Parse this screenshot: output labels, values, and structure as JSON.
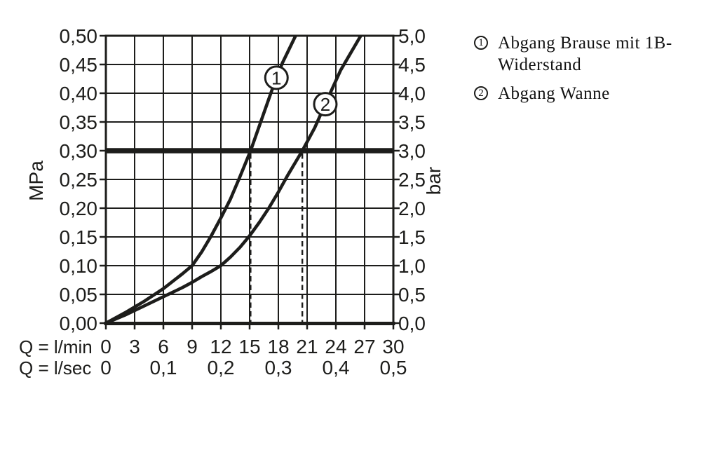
{
  "page": {
    "background": "#ffffff",
    "ink_color": "#1d1d1b"
  },
  "chart_data": {
    "type": "line",
    "title": "",
    "grid": true,
    "x_axis": {
      "label_min": "Q = l/min",
      "label_sec": "Q = l/sec",
      "lmin_tick_labels": [
        "0",
        "3",
        "6",
        "9",
        "12",
        "15",
        "18",
        "21",
        "24",
        "27",
        "30"
      ],
      "lmin_tick_values": [
        0,
        3,
        6,
        9,
        12,
        15,
        18,
        21,
        24,
        27,
        30
      ],
      "lsec_tick_labels": [
        "0",
        "0,1",
        "0,2",
        "0,3",
        "0,4",
        "0,5"
      ],
      "lsec_tick_lmin_positions": [
        0,
        6,
        12,
        18,
        24,
        30
      ],
      "range_lmin": [
        0,
        30
      ]
    },
    "y_axis_left": {
      "unit": "MPa",
      "tick_labels": [
        "0,50",
        "0,45",
        "0,40",
        "0,35",
        "0,30",
        "0,25",
        "0,20",
        "0,15",
        "0,10",
        "0,05",
        "0,00"
      ],
      "tick_values": [
        0.5,
        0.45,
        0.4,
        0.35,
        0.3,
        0.25,
        0.2,
        0.15,
        0.1,
        0.05,
        0.0
      ],
      "range_mpa": [
        0,
        0.5
      ]
    },
    "y_axis_right": {
      "unit": "bar",
      "tick_labels": [
        "5,0",
        "4,5",
        "4,0",
        "3,5",
        "3,0",
        "2,5",
        "2,0",
        "1,5",
        "1,0",
        "0,5",
        "0,0"
      ],
      "tick_values": [
        5.0,
        4.5,
        4.0,
        3.5,
        3.0,
        2.5,
        2.0,
        1.5,
        1.0,
        0.5,
        0.0
      ],
      "range_bar": [
        0,
        5
      ]
    },
    "reference_line": {
      "mpa": 0.3,
      "bar": 3.0,
      "style": "thick-horizontal"
    },
    "dashed_guides_lmin": [
      15.1,
      20.5
    ],
    "series": [
      {
        "marker": "1",
        "name": "Abgang Brause mit 1B-Widerstand",
        "marker_pos": {
          "lmin": 17.8,
          "mpa": 0.427
        },
        "points_lmin_mpa": [
          [
            0,
            0
          ],
          [
            2,
            0.018
          ],
          [
            4,
            0.038
          ],
          [
            6,
            0.06
          ],
          [
            8,
            0.086
          ],
          [
            9,
            0.1
          ],
          [
            10,
            0.124
          ],
          [
            11,
            0.152
          ],
          [
            12,
            0.183
          ],
          [
            13,
            0.216
          ],
          [
            14,
            0.255
          ],
          [
            15.1,
            0.3
          ],
          [
            16.2,
            0.352
          ],
          [
            17.3,
            0.404
          ],
          [
            18.4,
            0.452
          ],
          [
            19.8,
            0.5
          ]
        ]
      },
      {
        "marker": "2",
        "name": "Abgang Wanne",
        "marker_pos": {
          "lmin": 22.9,
          "mpa": 0.381
        },
        "points_lmin_mpa": [
          [
            0,
            0
          ],
          [
            2,
            0.014
          ],
          [
            4,
            0.03
          ],
          [
            6,
            0.046
          ],
          [
            8,
            0.062
          ],
          [
            9,
            0.071
          ],
          [
            10,
            0.081
          ],
          [
            11,
            0.09
          ],
          [
            12,
            0.1
          ],
          [
            13,
            0.115
          ],
          [
            14,
            0.132
          ],
          [
            15,
            0.152
          ],
          [
            16,
            0.175
          ],
          [
            17,
            0.2
          ],
          [
            18,
            0.228
          ],
          [
            19,
            0.258
          ],
          [
            20.5,
            0.3
          ],
          [
            21.8,
            0.34
          ],
          [
            23,
            0.385
          ],
          [
            24.5,
            0.44
          ],
          [
            26.6,
            0.5
          ]
        ]
      }
    ]
  },
  "legend": {
    "items": [
      {
        "num": "1",
        "lines": [
          "Abgang Brause mit 1B-",
          "Widerstand"
        ]
      },
      {
        "num": "2",
        "lines": [
          "Abgang Wanne"
        ]
      }
    ]
  }
}
